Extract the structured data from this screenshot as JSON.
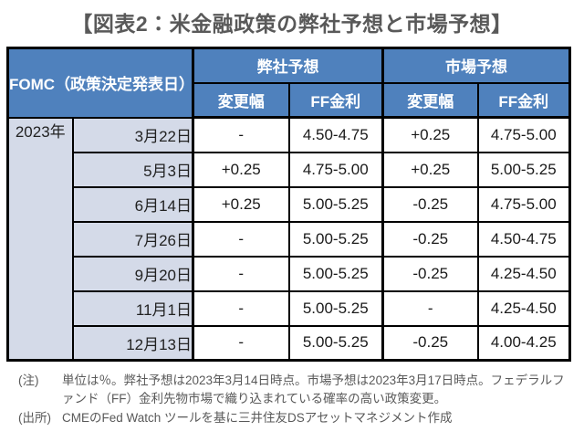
{
  "page": {
    "title": "【図表2：米金融政策の弊社予想と市場予想】"
  },
  "table": {
    "header": {
      "fomc": "FOMC（政策決定発表日）",
      "our_forecast": "弊社予想",
      "market_forecast": "市場予想",
      "change": "変更幅",
      "ff_rate": "FF金利"
    },
    "year": "2023年",
    "rows": [
      {
        "date": "3月22日",
        "our_change": "-",
        "our_rate": "4.50-4.75",
        "mkt_change": "+0.25",
        "mkt_rate": "4.75-5.00"
      },
      {
        "date": "5月3日",
        "our_change": "+0.25",
        "our_rate": "4.75-5.00",
        "mkt_change": "+0.25",
        "mkt_rate": "5.00-5.25"
      },
      {
        "date": "6月14日",
        "our_change": "+0.25",
        "our_rate": "5.00-5.25",
        "mkt_change": "-0.25",
        "mkt_rate": "4.75-5.00"
      },
      {
        "date": "7月26日",
        "our_change": "-",
        "our_rate": "5.00-5.25",
        "mkt_change": "-0.25",
        "mkt_rate": "4.50-4.75"
      },
      {
        "date": "9月20日",
        "our_change": "-",
        "our_rate": "5.00-5.25",
        "mkt_change": "-0.25",
        "mkt_rate": "4.25-4.50"
      },
      {
        "date": "11月1日",
        "our_change": "-",
        "our_rate": "5.00-5.25",
        "mkt_change": "-",
        "mkt_rate": "4.25-4.50"
      },
      {
        "date": "12月13日",
        "our_change": "-",
        "our_rate": "5.00-5.25",
        "mkt_change": "-0.25",
        "mkt_rate": "4.00-4.25"
      }
    ]
  },
  "notes": {
    "note_label": "(注)",
    "note_text": "単位は％。弊社予想は2023年3月14日時点。市場予想は2023年3月17日時点。フェデラルファンド（FF）金利先物市場で織り込まれている確率の高い政策変更。",
    "source_label": "(出所)",
    "source_text": "CMEのFed Watch ツールを基に三井住友DSアセットマネジメント作成"
  },
  "colors": {
    "header_blue": "#4F81BD",
    "label_bg": "#D4DAE8",
    "border": "#000000",
    "title_color": "#595959",
    "note_color": "#595959"
  },
  "chart_data": {
    "type": "table",
    "title": "【図表2：米金融政策の弊社予想と市場予想】",
    "column_groups": [
      "弊社予想",
      "市場予想"
    ],
    "columns": [
      "FOMC（政策決定発表日）",
      "弊社予想 変更幅",
      "弊社予想 FF金利",
      "市場予想 変更幅",
      "市場予想 FF金利"
    ],
    "rows": [
      [
        "2023年 3月22日",
        "-",
        "4.50-4.75",
        "+0.25",
        "4.75-5.00"
      ],
      [
        "2023年 5月3日",
        "+0.25",
        "4.75-5.00",
        "+0.25",
        "5.00-5.25"
      ],
      [
        "2023年 6月14日",
        "+0.25",
        "5.00-5.25",
        "-0.25",
        "4.75-5.00"
      ],
      [
        "2023年 7月26日",
        "-",
        "5.00-5.25",
        "-0.25",
        "4.50-4.75"
      ],
      [
        "2023年 9月20日",
        "-",
        "5.00-5.25",
        "-0.25",
        "4.25-4.50"
      ],
      [
        "2023年 11月1日",
        "-",
        "5.00-5.25",
        "-",
        "4.25-4.50"
      ],
      [
        "2023年 12月13日",
        "-",
        "5.00-5.25",
        "-0.25",
        "4.00-4.25"
      ]
    ],
    "notes": [
      "(注) 単位は％。弊社予想は2023年3月14日時点。市場予想は2023年3月17日時点。フェデラルファンド（FF）金利先物市場で織り込まれている確率の高い政策変更。",
      "(出所) CMEのFed Watch ツールを基に三井住友DSアセットマネジメント作成"
    ]
  }
}
